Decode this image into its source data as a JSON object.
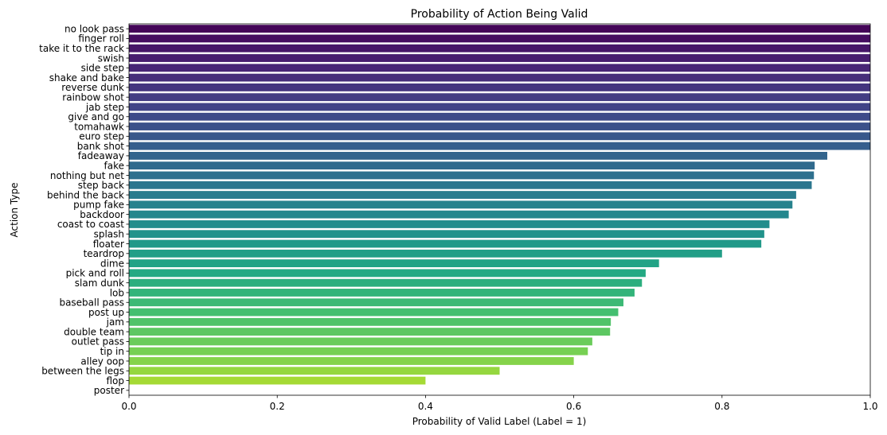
{
  "chart_data": {
    "type": "bar",
    "orientation": "horizontal",
    "title": "Probability of Action Being Valid",
    "xlabel": "Probability of Valid Label (Label = 1)",
    "ylabel": "Action Type",
    "xlim": [
      0.0,
      1.0
    ],
    "xticks": [
      "0.0",
      "0.2",
      "0.4",
      "0.6",
      "0.8",
      "1.0"
    ],
    "grid": false,
    "colormap": "viridis",
    "categories": [
      "no look pass",
      "finger roll",
      "take it to the rack",
      "swish",
      "side step",
      "shake and bake",
      "reverse dunk",
      "rainbow shot",
      "jab step",
      "give and go",
      "tomahawk",
      "euro step",
      "bank shot",
      "fadeaway",
      "fake",
      "nothing but net",
      "step back",
      "behind the back",
      "pump fake",
      "backdoor",
      "coast to coast",
      "splash",
      "floater",
      "teardrop",
      "dime",
      "pick and roll",
      "slam dunk",
      "lob",
      "baseball pass",
      "post up",
      "jam",
      "double team",
      "outlet pass",
      "tip in",
      "alley oop",
      "between the legs",
      "flop",
      "poster"
    ],
    "values": [
      1.0,
      1.0,
      1.0,
      1.0,
      1.0,
      1.0,
      1.0,
      1.0,
      1.0,
      1.0,
      1.0,
      1.0,
      1.0,
      0.942,
      0.925,
      0.924,
      0.921,
      0.9,
      0.895,
      0.89,
      0.864,
      0.857,
      0.853,
      0.8,
      0.715,
      0.697,
      0.692,
      0.682,
      0.667,
      0.66,
      0.65,
      0.649,
      0.625,
      0.619,
      0.6,
      0.5,
      0.4,
      0.0
    ]
  }
}
